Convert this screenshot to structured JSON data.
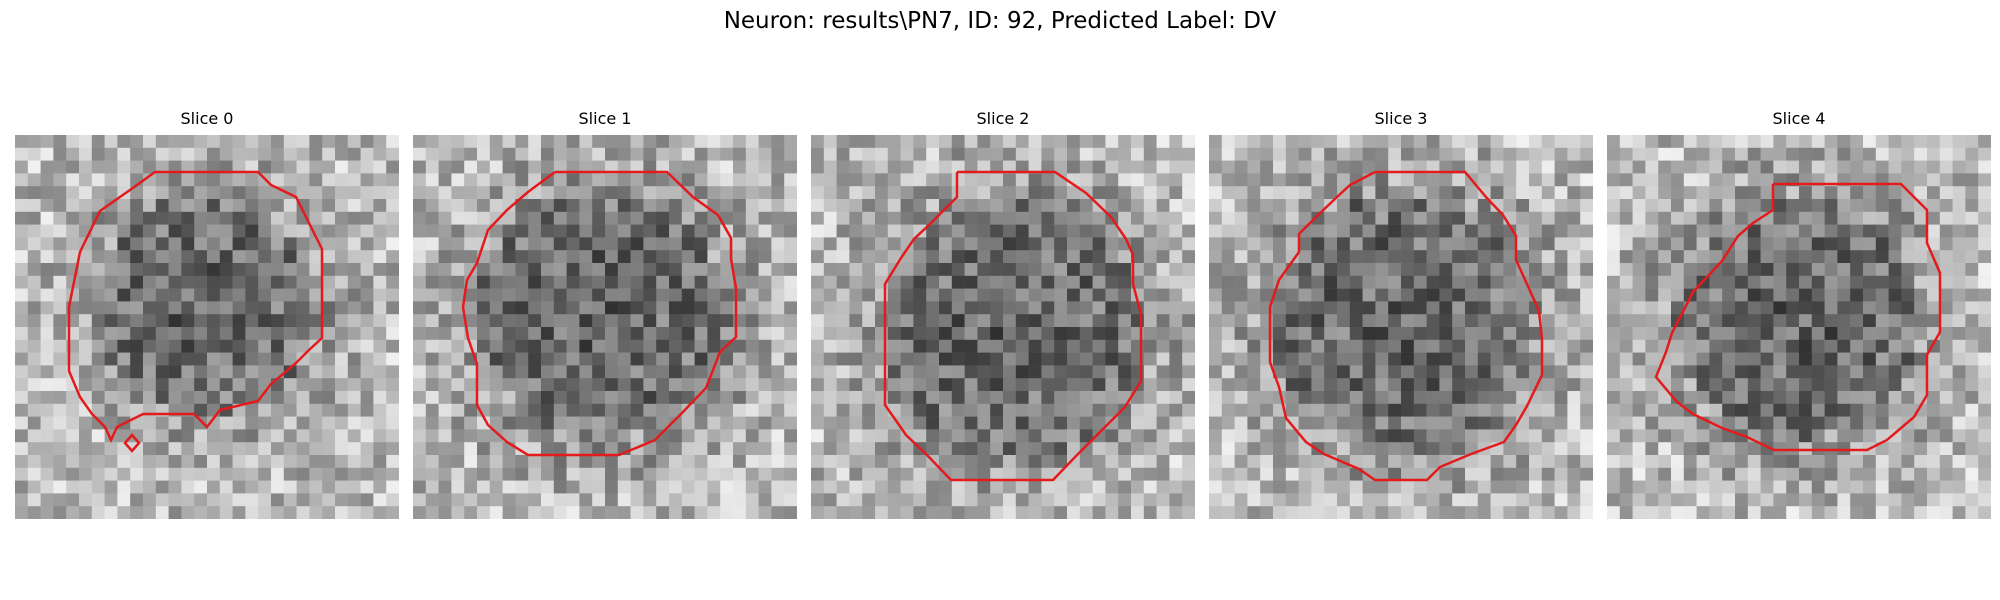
{
  "figure": {
    "title": "Neuron: results\\PN7, ID: 92, Predicted Label: DV"
  },
  "panels": [
    {
      "title": "Slice 0"
    },
    {
      "title": "Slice 1"
    },
    {
      "title": "Slice 2"
    },
    {
      "title": "Slice 3"
    },
    {
      "title": "Slice 4"
    }
  ],
  "colors": {
    "contour": "#e41a1c",
    "colormap": "grayscale"
  }
}
